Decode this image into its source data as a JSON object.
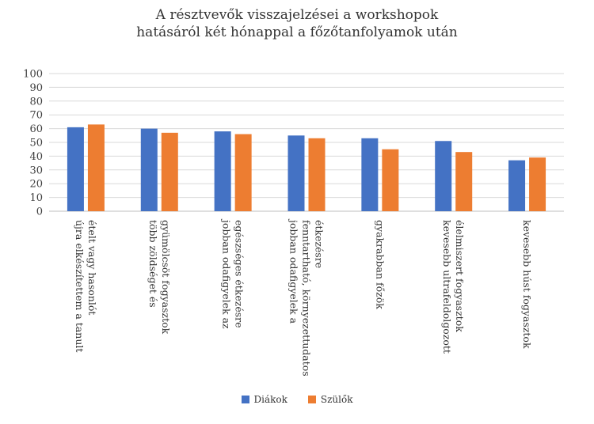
{
  "chart_data": {
    "type": "bar",
    "title_lines": [
      "A résztvevők visszajelzései a workshopok",
      "hatásáról két hónappal a főzőtanfolyamok után"
    ],
    "categories": [
      [
        "újra elkészítettem a tanult",
        "ételt vagy hasonlót"
      ],
      [
        "több zöldséget és",
        "gyümölcsöt fogyasztok"
      ],
      [
        "jobban odafigyelek az",
        "egészséges étkezésre"
      ],
      [
        "jobban odafigyelek a",
        "fenntartható, környezettudatos",
        "étkezésre"
      ],
      [
        "gyakrabban főzök"
      ],
      [
        "kevesebb ultrafeldolgozott",
        "élelmiszert fogyasztok"
      ],
      [
        "kevesebb húst fogyasztok"
      ]
    ],
    "series": [
      {
        "name": "Diákok",
        "color": "#4472C4",
        "values": [
          61,
          60,
          58,
          55,
          53,
          51,
          37
        ]
      },
      {
        "name": "Szülők",
        "color": "#ED7D31",
        "values": [
          63,
          57,
          56,
          53,
          45,
          43,
          39
        ]
      }
    ],
    "ylim": [
      0,
      100
    ],
    "yticks": [
      "0",
      "10",
      "20",
      "30",
      "40",
      "50",
      "60",
      "70",
      "80",
      "90",
      "100"
    ],
    "grid": true,
    "legend_position": "bottom"
  }
}
